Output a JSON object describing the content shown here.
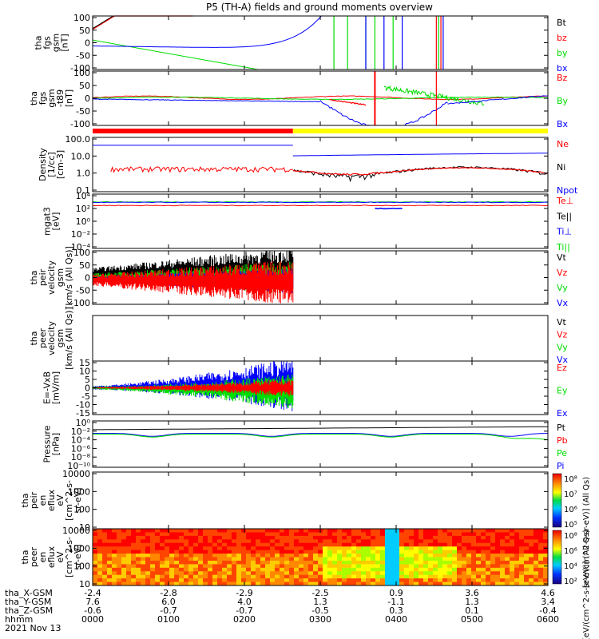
{
  "title": "P5 (TH-A) fields and ground moments overview",
  "footer": {
    "rows": [
      {
        "label": "tha_X-GSM",
        "values": [
          "-2.4",
          "-2.8",
          "-2.9",
          "-2.5",
          "0.9",
          "3.6",
          "4.6"
        ]
      },
      {
        "label": "tha_Y-GSM",
        "values": [
          "7.6",
          "6.0",
          "4.0",
          "1.3",
          "-1.1",
          "1.3",
          "3.4"
        ]
      },
      {
        "label": "tha_Z-GSM",
        "values": [
          "-0.6",
          "-0.7",
          "-0.7",
          "-0.5",
          "0.3",
          "0.1",
          "-0.4"
        ]
      },
      {
        "label": "hhmm",
        "values": [
          "0000",
          "0100",
          "0200",
          "0300",
          "0400",
          "0500",
          "0600"
        ]
      }
    ],
    "date": "2021 Nov 13"
  },
  "colors": {
    "black": "#000000",
    "red": "#ff0000",
    "green": "#00dd00",
    "blue": "#0000ff",
    "yellow": "#ffff00"
  },
  "chart_data": [
    {
      "type": "line",
      "ylabel": [
        "tha",
        "fgs",
        "gsm",
        "[nT]"
      ],
      "ylim": [
        -100,
        100
      ],
      "ticks": [
        "100",
        "50",
        "0",
        "-50",
        "-100"
      ],
      "legend": [
        {
          "label": "Bt",
          "color": "black"
        },
        {
          "label": "bz",
          "color": "red"
        },
        {
          "label": "by",
          "color": "green"
        },
        {
          "label": "bx",
          "color": "blue"
        }
      ]
    },
    {
      "type": "line",
      "ylabel": [
        "tha",
        "fgs",
        "gsm",
        "-t89",
        "[nT]"
      ],
      "ylim": [
        -100,
        100
      ],
      "ticks": [
        "100",
        "50",
        "0",
        "-50",
        "-100"
      ],
      "legend": [
        {
          "label": "Bz",
          "color": "red"
        },
        {
          "label": "By",
          "color": "green"
        },
        {
          "label": "Bx",
          "color": "blue"
        }
      ]
    },
    {
      "type": "line",
      "ylabel": [
        "Density",
        "[1/cc]",
        "[cm-3]"
      ],
      "scale": "log",
      "ticks": [
        "100.0",
        "10.0",
        "1.0",
        "0.1"
      ],
      "legend": [
        {
          "label": "Ne",
          "color": "red"
        },
        {
          "label": "Ni",
          "color": "black"
        },
        {
          "label": "Npot",
          "color": "blue"
        }
      ]
    },
    {
      "type": "line",
      "ylabel": [
        "mgat3",
        "[eV]"
      ],
      "scale": "log",
      "ticks": [
        "10⁴",
        "10²",
        "10⁰",
        "10⁻²",
        "10⁻⁴"
      ],
      "legend": [
        {
          "label": "Te⊥",
          "color": "red"
        },
        {
          "label": "Te||",
          "color": "black"
        },
        {
          "label": "Ti⊥",
          "color": "blue"
        },
        {
          "label": "Ti||",
          "color": "green"
        }
      ]
    },
    {
      "type": "line",
      "ylabel": [
        "tha",
        "peir",
        "velocity",
        "gsm",
        "[km/s (All Qs)]"
      ],
      "ylim": [
        -100,
        100
      ],
      "ticks": [
        "100",
        "50",
        "0",
        "-50",
        "-100"
      ],
      "legend": [
        {
          "label": "Vt",
          "color": "black"
        },
        {
          "label": "Vz",
          "color": "red"
        },
        {
          "label": "Vy",
          "color": "green"
        },
        {
          "label": "Vx",
          "color": "blue"
        }
      ]
    },
    {
      "type": "line",
      "ylabel": [
        "tha",
        "peer",
        "velocity",
        "gsm",
        "[km/s (All Qs)]"
      ],
      "ticks": [],
      "legend": [
        {
          "label": "Vt",
          "color": "black"
        },
        {
          "label": "Vz",
          "color": "red"
        },
        {
          "label": "Vy",
          "color": "green"
        },
        {
          "label": "Vx",
          "color": "blue"
        }
      ]
    },
    {
      "type": "line",
      "ylabel": [
        "E=-VxB",
        "[mV/m]"
      ],
      "ylim": [
        -15,
        15
      ],
      "ticks": [
        "15",
        "10",
        "5",
        "0",
        "-5",
        "-10",
        "-15"
      ],
      "legend": [
        {
          "label": "Ez",
          "color": "red"
        },
        {
          "label": "Ey",
          "color": "green"
        },
        {
          "label": "Ex",
          "color": "blue"
        }
      ]
    },
    {
      "type": "line",
      "ylabel": [
        "Pressure",
        "[nPa]"
      ],
      "scale": "log",
      "ticks": [
        "10⁰",
        "10⁻²",
        "10⁻⁴",
        "10⁻⁶",
        "10⁻⁸",
        "10⁻¹⁰"
      ],
      "legend": [
        {
          "label": "Pt",
          "color": "black"
        },
        {
          "label": "Pb",
          "color": "red"
        },
        {
          "label": "Pe",
          "color": "green"
        },
        {
          "label": "Pi",
          "color": "blue"
        }
      ]
    },
    {
      "type": "heatmap",
      "ylabel": [
        "tha",
        "peir",
        "en",
        "eflux",
        "eV",
        "[cm^2-s-",
        "sr-eV]"
      ],
      "ticks": [
        "10000",
        "1000",
        "100",
        "10"
      ],
      "colorbar_ticks": [
        "10⁸",
        "10⁷",
        "10⁶",
        "10⁵"
      ],
      "colorbar_label": "[eV/(cm^2-s-sr-eV)] (All Qs)"
    },
    {
      "type": "heatmap",
      "ylabel": [
        "tha",
        "peer",
        "en",
        "eflux",
        "eV",
        "[cm^2-s-",
        "sr-eV]"
      ],
      "ticks": [
        "10000",
        "1000",
        "100",
        "10"
      ],
      "colorbar_ticks": [
        "10⁸",
        "10⁶",
        "10⁴",
        "10²"
      ],
      "colorbar_label": "[eV/(cm^2-s-sr-eV)] (All Qs)"
    }
  ]
}
